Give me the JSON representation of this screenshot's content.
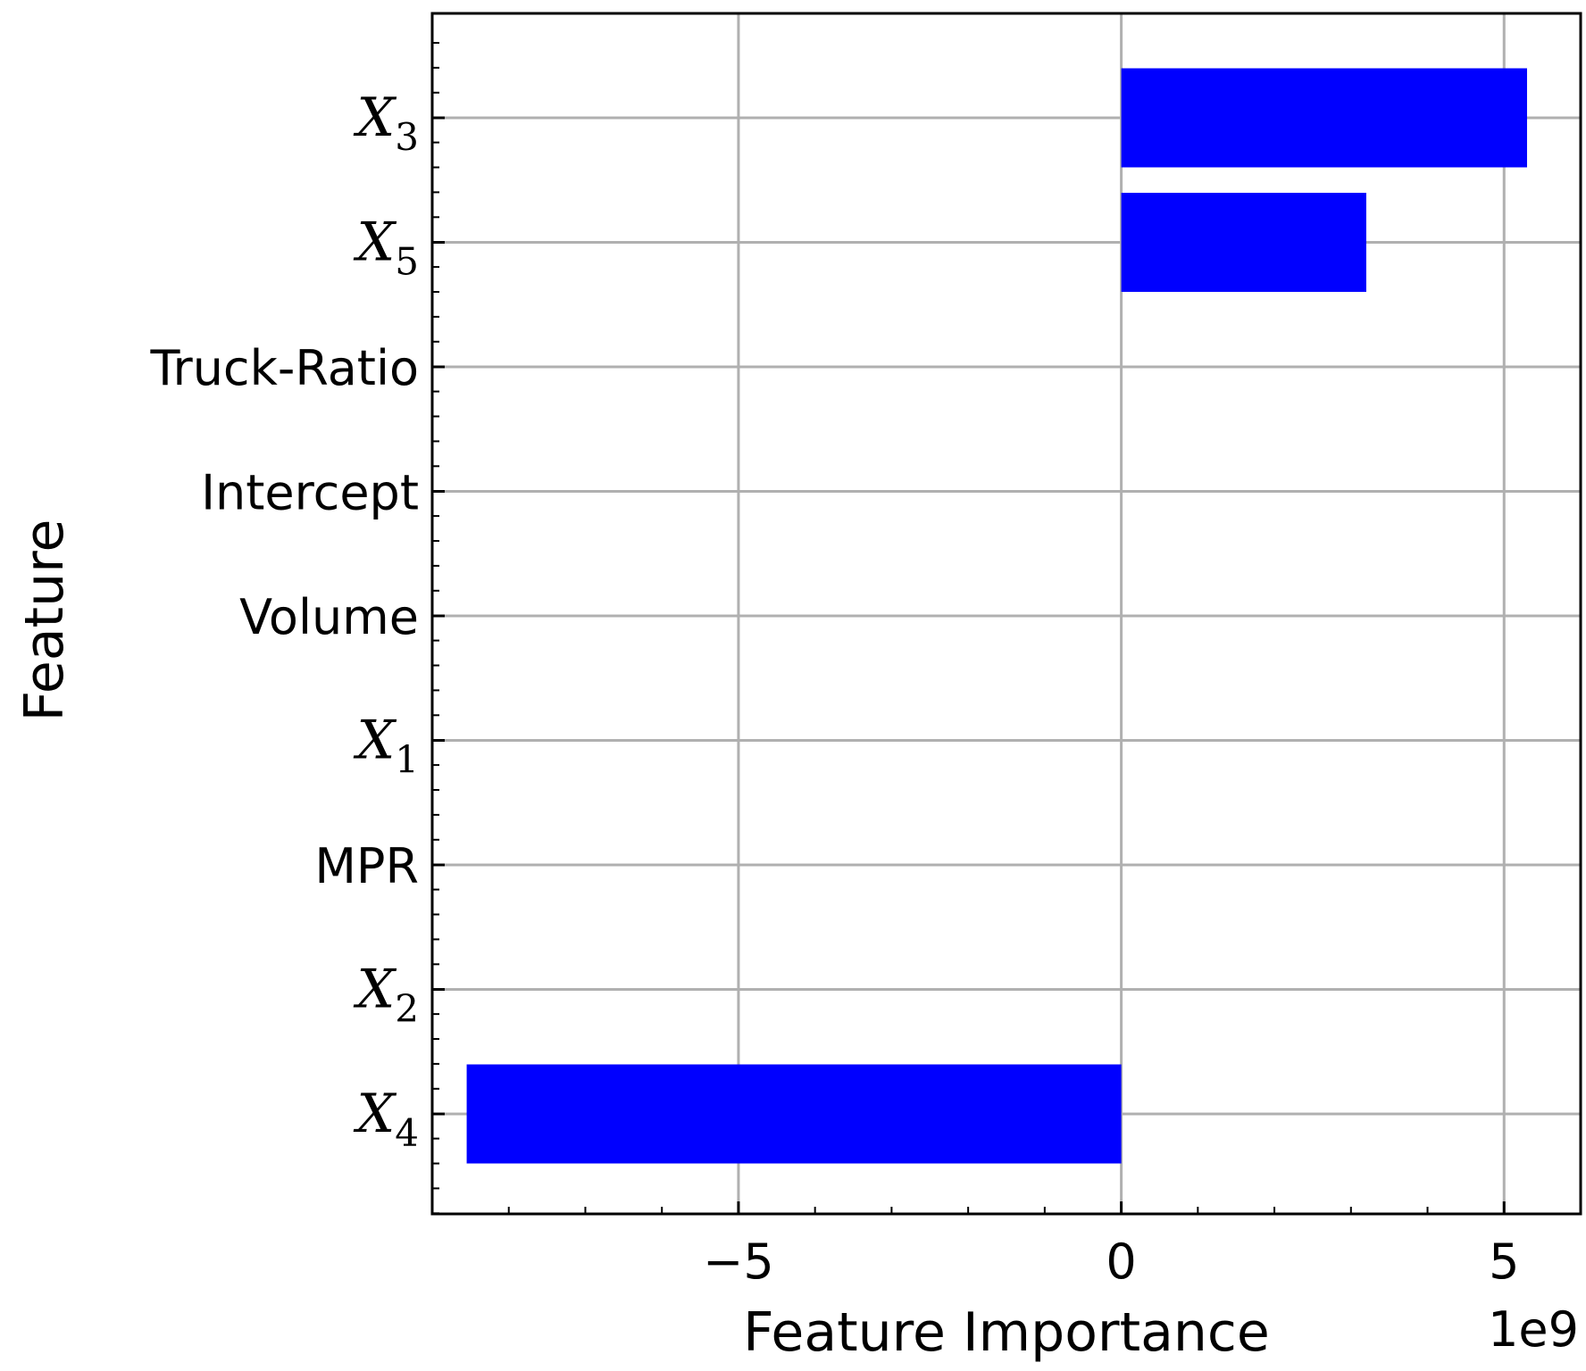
{
  "chart_data": {
    "type": "bar",
    "orientation": "horizontal",
    "xlabel": "Feature Importance",
    "ylabel": "Feature",
    "offset_text": "1e9",
    "xlim": [
      -9.0,
      6.0
    ],
    "xticks": [
      -5,
      0,
      5
    ],
    "xtick_labels": [
      "−5",
      "0",
      "5"
    ],
    "grid": true,
    "bar_color": "#0000ff",
    "categories": [
      {
        "label": "X",
        "sub": "3",
        "math": true,
        "value": 5.3
      },
      {
        "label": "X",
        "sub": "5",
        "math": true,
        "value": 3.2
      },
      {
        "label": "Truck-Ratio",
        "sub": "",
        "math": false,
        "value": 0
      },
      {
        "label": "Intercept",
        "sub": "",
        "math": false,
        "value": 0
      },
      {
        "label": "Volume",
        "sub": "",
        "math": false,
        "value": 0
      },
      {
        "label": "X",
        "sub": "1",
        "math": true,
        "value": 0
      },
      {
        "label": "MPR",
        "sub": "",
        "math": false,
        "value": 0
      },
      {
        "label": "X",
        "sub": "2",
        "math": true,
        "value": 0
      },
      {
        "label": "X",
        "sub": "4",
        "math": true,
        "value": -8.55
      }
    ]
  }
}
